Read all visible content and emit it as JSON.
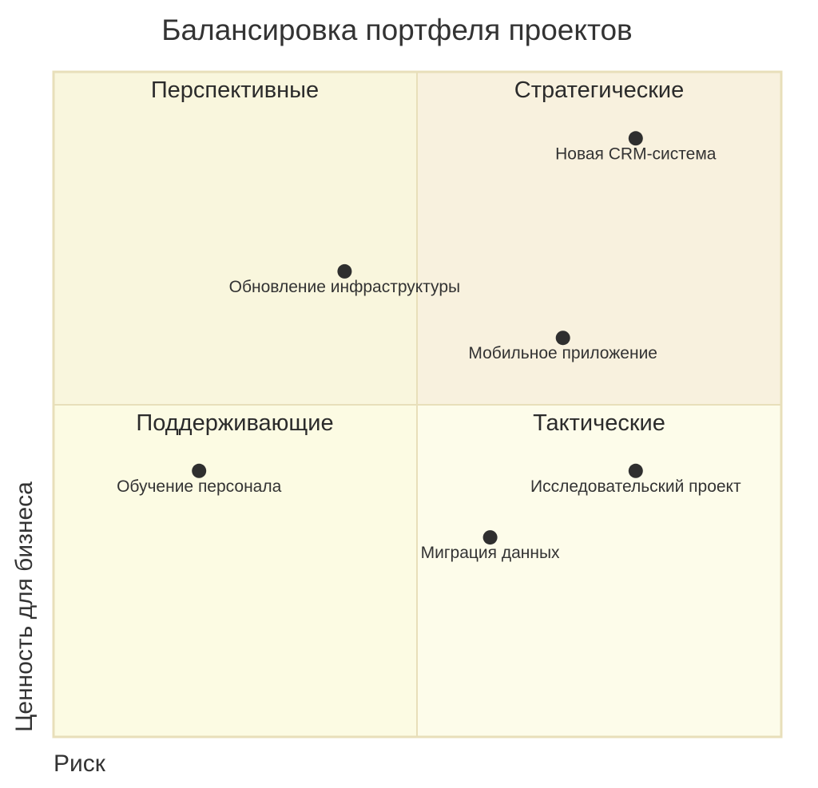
{
  "colors": {
    "quad_top_left": "#f9f6dd",
    "quad_top_right": "#f8f1de",
    "quad_bottom_left": "#fcfbe3",
    "quad_bottom_right": "#fdfcea",
    "border": "#e8dfba",
    "point": "#2f2f2f"
  },
  "chart_data": {
    "type": "scatter",
    "title": "Балансировка портфеля проектов",
    "xlabel": "Риск",
    "ylabel": "Ценность для бизнеса",
    "xlim": [
      0,
      1
    ],
    "ylim": [
      0,
      1
    ],
    "quadrants": {
      "top_left": "Перспективные",
      "top_right": "Стратегические",
      "bottom_left": "Поддерживающие",
      "bottom_right": "Тактические"
    },
    "points": [
      {
        "label": "Новая CRM-система",
        "x": 0.8,
        "y": 0.9
      },
      {
        "label": "Обновление инфраструктуры",
        "x": 0.4,
        "y": 0.7
      },
      {
        "label": "Мобильное приложение",
        "x": 0.7,
        "y": 0.6
      },
      {
        "label": "Обучение персонала",
        "x": 0.2,
        "y": 0.4
      },
      {
        "label": "Исследовательский проект",
        "x": 0.8,
        "y": 0.4
      },
      {
        "label": "Миграция данных",
        "x": 0.6,
        "y": 0.3
      }
    ]
  }
}
